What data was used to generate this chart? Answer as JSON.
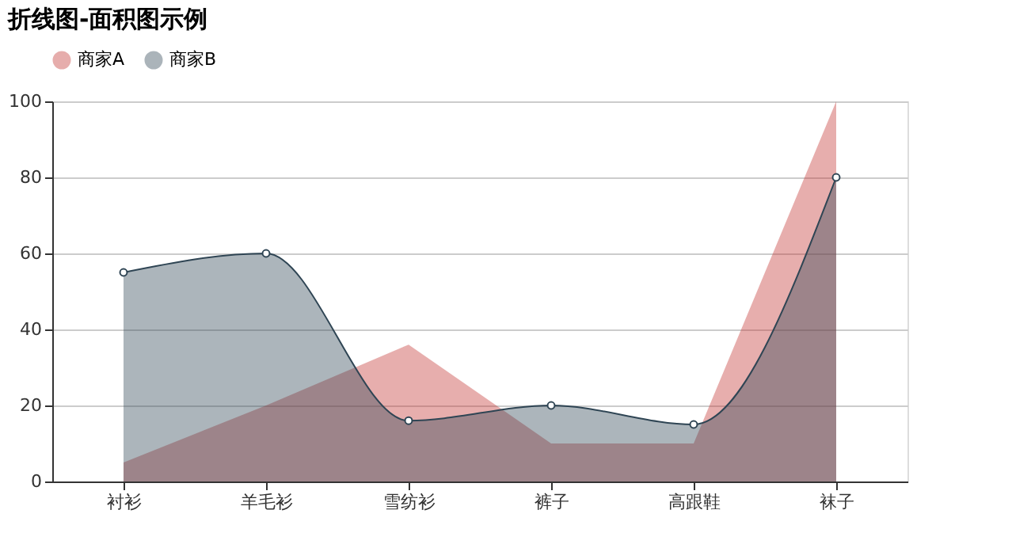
{
  "chart_data": {
    "type": "area",
    "title": "折线图-面积图示例",
    "categories": [
      "衬衫",
      "羊毛衫",
      "雪纺衫",
      "裤子",
      "高跟鞋",
      "袜子"
    ],
    "series": [
      {
        "name": "商家A",
        "color": "#c23531",
        "values": [
          5,
          20,
          36,
          10,
          10,
          100
        ],
        "marker": "none"
      },
      {
        "name": "商家B",
        "color": "#2f4554",
        "values": [
          55,
          60,
          16,
          20,
          15,
          80
        ],
        "marker": "circle"
      }
    ],
    "ylim": [
      0,
      100
    ],
    "yticks": [
      0,
      20,
      40,
      60,
      80,
      100
    ],
    "grid": "y",
    "legend": "top"
  }
}
